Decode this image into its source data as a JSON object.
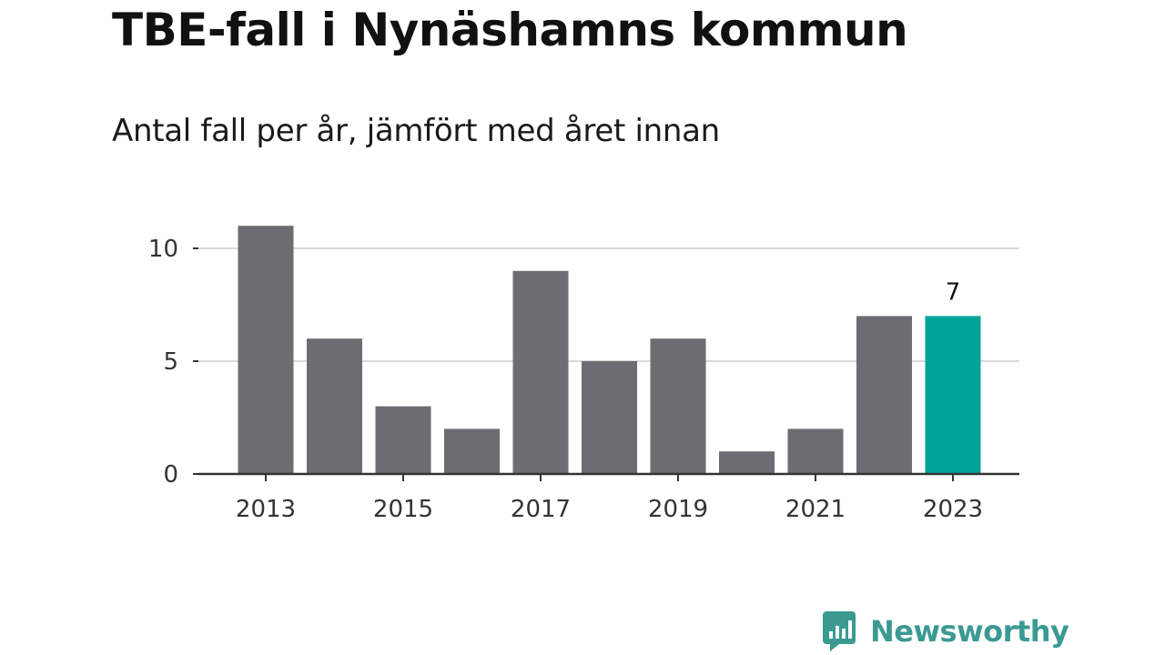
{
  "chart_data": {
    "type": "bar",
    "title": "TBE-fall i Nynäshamns kommun",
    "subtitle": "Antal fall per år, jämfört med året innan",
    "categories": [
      "2013",
      "2014",
      "2015",
      "2016",
      "2017",
      "2018",
      "2019",
      "2020",
      "2021",
      "2022",
      "2023"
    ],
    "values": [
      11,
      6,
      3,
      2,
      9,
      5,
      6,
      1,
      2,
      7,
      7
    ],
    "x_tick_labels": [
      "2013",
      "2015",
      "2017",
      "2019",
      "2021",
      "2023"
    ],
    "y_ticks": [
      0,
      5,
      10
    ],
    "ylim": [
      0,
      12
    ],
    "grid": true,
    "highlight": {
      "category": "2023",
      "value_label": "7"
    },
    "colors": {
      "bar": "#6d6c72",
      "highlight": "#00a398",
      "grid": "#d9d9d9",
      "axis": "#333333"
    }
  },
  "branding": {
    "name": "Newsworthy",
    "icon": "newsworthy-logo-icon",
    "color": "#3a9a92"
  }
}
